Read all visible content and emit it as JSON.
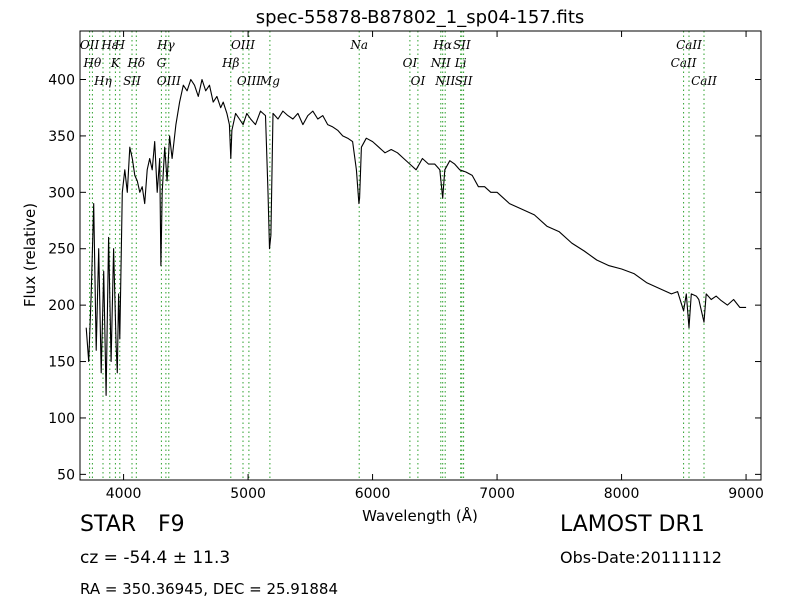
{
  "chart_data": {
    "type": "line",
    "title": "spec-55878-B87802_1_sp04-157.fits",
    "xlabel": "Wavelength (Å)",
    "ylabel": "Flux (relative)",
    "xlim": [
      3650,
      9120
    ],
    "ylim": [
      45,
      443
    ],
    "x_ticks": [
      4000,
      5000,
      6000,
      7000,
      8000,
      9000
    ],
    "y_ticks": [
      50,
      100,
      150,
      200,
      250,
      300,
      350,
      400
    ],
    "grid": false,
    "line_color": "#000000",
    "marker_color": "#2ca02c",
    "spectrum": {
      "name": "flux",
      "x": [
        3700,
        3720,
        3740,
        3760,
        3780,
        3800,
        3820,
        3840,
        3860,
        3880,
        3900,
        3920,
        3940,
        3950,
        3960,
        3970,
        3990,
        4010,
        4030,
        4050,
        4070,
        4090,
        4110,
        4130,
        4150,
        4170,
        4190,
        4210,
        4230,
        4250,
        4270,
        4290,
        4300,
        4310,
        4330,
        4350,
        4370,
        4390,
        4420,
        4450,
        4480,
        4510,
        4540,
        4570,
        4600,
        4630,
        4660,
        4690,
        4720,
        4750,
        4780,
        4800,
        4830,
        4850,
        4861,
        4870,
        4900,
        4930,
        4960,
        4990,
        5020,
        5060,
        5100,
        5140,
        5160,
        5172,
        5183,
        5200,
        5240,
        5280,
        5320,
        5360,
        5400,
        5440,
        5480,
        5520,
        5560,
        5600,
        5640,
        5680,
        5720,
        5760,
        5800,
        5840,
        5870,
        5890,
        5896,
        5910,
        5950,
        6000,
        6050,
        6100,
        6150,
        6200,
        6250,
        6300,
        6350,
        6400,
        6450,
        6500,
        6540,
        6563,
        6580,
        6620,
        6660,
        6700,
        6750,
        6800,
        6850,
        6900,
        6950,
        7000,
        7100,
        7200,
        7300,
        7400,
        7500,
        7600,
        7700,
        7800,
        7900,
        8000,
        8100,
        8200,
        8300,
        8400,
        8450,
        8498,
        8520,
        8542,
        8560,
        8600,
        8620,
        8662,
        8680,
        8720,
        8760,
        8800,
        8850,
        8900,
        8950,
        9000
      ],
      "y": [
        180,
        150,
        210,
        290,
        160,
        250,
        140,
        230,
        120,
        260,
        150,
        250,
        165,
        140,
        210,
        170,
        300,
        320,
        300,
        340,
        330,
        315,
        310,
        300,
        305,
        290,
        320,
        330,
        320,
        345,
        300,
        330,
        235,
        300,
        340,
        310,
        350,
        330,
        360,
        380,
        395,
        390,
        400,
        395,
        385,
        400,
        390,
        395,
        380,
        385,
        375,
        380,
        370,
        360,
        330,
        355,
        370,
        365,
        360,
        370,
        365,
        360,
        372,
        368,
        300,
        250,
        262,
        370,
        365,
        372,
        368,
        365,
        370,
        360,
        368,
        372,
        365,
        368,
        360,
        358,
        355,
        350,
        348,
        345,
        320,
        290,
        295,
        340,
        348,
        345,
        340,
        335,
        338,
        335,
        330,
        325,
        320,
        330,
        325,
        325,
        320,
        295,
        320,
        328,
        325,
        320,
        318,
        315,
        305,
        305,
        300,
        300,
        290,
        285,
        280,
        270,
        265,
        255,
        248,
        240,
        235,
        232,
        228,
        220,
        215,
        210,
        212,
        195,
        210,
        180,
        210,
        208,
        205,
        185,
        210,
        205,
        208,
        204,
        200,
        205,
        198,
        198
      ]
    },
    "spectral_lines": [
      {
        "label": "OII",
        "wavelength": 3727
      },
      {
        "label": "Hθ",
        "wavelength": 3750
      },
      {
        "label": "Hη",
        "wavelength": 3835
      },
      {
        "label": "Hε",
        "wavelength": 3889
      },
      {
        "label": "K",
        "wavelength": 3934
      },
      {
        "label": "SII",
        "wavelength": 4068
      },
      {
        "label": "H",
        "wavelength": 3970
      },
      {
        "label": "Hδ",
        "wavelength": 4102
      },
      {
        "label": "OIII",
        "wavelength": 4363
      },
      {
        "label": "Hγ",
        "wavelength": 4340
      },
      {
        "label": "G",
        "wavelength": 4304
      },
      {
        "label": "OIII",
        "wavelength": 5007
      },
      {
        "label": "OIII",
        "wavelength": 4959
      },
      {
        "label": "Hβ",
        "wavelength": 4861
      },
      {
        "label": "Mg",
        "wavelength": 5175
      },
      {
        "label": "Na",
        "wavelength": 5893
      },
      {
        "label": "OI",
        "wavelength": 6300
      },
      {
        "label": "OI",
        "wavelength": 6364
      },
      {
        "label": "Hα",
        "wavelength": 6563
      },
      {
        "label": "NII",
        "wavelength": 6548
      },
      {
        "label": "NII",
        "wavelength": 6583
      },
      {
        "label": "SII",
        "wavelength": 6717
      },
      {
        "label": "Li",
        "wavelength": 6708
      },
      {
        "label": "SII",
        "wavelength": 6731
      },
      {
        "label": "CaII",
        "wavelength": 8542
      },
      {
        "label": "CaII",
        "wavelength": 8498
      },
      {
        "label": "CaII",
        "wavelength": 8662
      }
    ]
  },
  "info": {
    "object_type": "STAR",
    "subclass": "F9",
    "survey": "LAMOST DR1",
    "cz": "cz = -54.4 ± 11.3",
    "obs_date": "Obs-Date:20111112",
    "radec": "RA = 350.36945, DEC = 25.91884"
  }
}
